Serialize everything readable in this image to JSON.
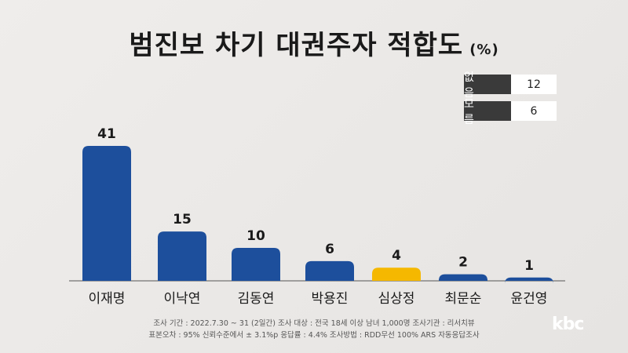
{
  "chart_data": {
    "type": "bar",
    "title": "범진보 차기 대권주자 적합도",
    "unit": "(%)",
    "categories": [
      "이재명",
      "이낙연",
      "김동연",
      "박용진",
      "심상정",
      "최문순",
      "윤건영"
    ],
    "values": [
      41,
      15,
      10,
      6,
      4,
      2,
      1
    ],
    "highlight_index": 4,
    "colors": {
      "bar": "#1d4f9c",
      "highlight": "#f5b800"
    },
    "ylim": [
      0,
      45
    ],
    "xlabel": "",
    "ylabel": "",
    "extra": [
      {
        "label": "없 음",
        "value": "12"
      },
      {
        "label": "모 름",
        "value": "6"
      }
    ]
  },
  "notes": {
    "line1": "조사 기간 : 2022.7.30 ~ 31 (2일간)   조사 대상 : 전국 18세 이상 남녀 1,000명   조사기관 : 리서치뷰",
    "line2": "표본오차 : 95% 신뢰수준에서 ± 3.1%p   응답률 : 4.4%   조사방법 : RDD무선 100% ARS 자동응답조사"
  },
  "logo": "kbc"
}
